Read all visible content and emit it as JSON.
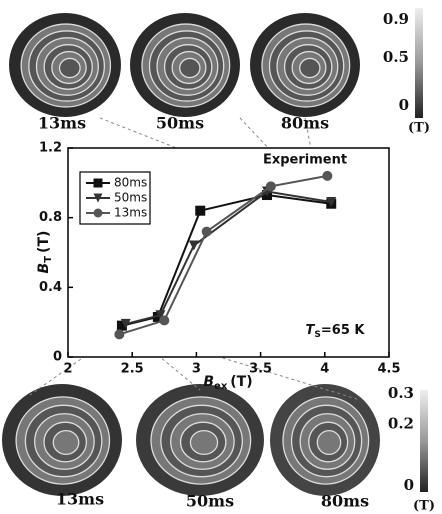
{
  "chart_data": {
    "type": "line",
    "xlabel": {
      "main": "B",
      "sub": "ex",
      "unit": "(T)"
    },
    "ylabel": {
      "main": "B",
      "sub": "T",
      "unit": "(T)"
    },
    "annotations": {
      "experiment": "Experiment",
      "temperature": {
        "main": "T",
        "sub": "S",
        "rest": "=65 K"
      }
    },
    "xlim": [
      2,
      4.5
    ],
    "xticks": [
      2,
      2.5,
      3,
      3.5,
      4,
      4.5
    ],
    "ylim": [
      0,
      1.2
    ],
    "yticks": [
      0,
      0.4,
      0.8,
      1.2
    ],
    "legend": "top-left",
    "series": [
      {
        "name": "80ms",
        "color": "#111111",
        "marker": "square",
        "x": [
          2.42,
          2.7,
          3.03,
          3.55,
          4.05
        ],
        "values": [
          0.18,
          0.23,
          0.84,
          0.93,
          0.88
        ]
      },
      {
        "name": "50ms",
        "color": "#333333",
        "marker": "triangle",
        "x": [
          2.45,
          2.72,
          2.98,
          3.55,
          4.05
        ],
        "values": [
          0.19,
          0.24,
          0.64,
          0.95,
          0.89
        ]
      },
      {
        "name": "13ms",
        "color": "#555555",
        "marker": "circle",
        "x": [
          2.4,
          2.75,
          3.08,
          3.58,
          4.02
        ],
        "values": [
          0.13,
          0.21,
          0.72,
          0.98,
          1.04
        ]
      }
    ]
  },
  "images": {
    "top": [
      "13ms",
      "50ms",
      "80ms"
    ],
    "bottom": [
      "13ms",
      "50ms",
      "80ms"
    ]
  },
  "colorbars": [
    {
      "lim": [
        0,
        0.9
      ],
      "ticks": [
        0,
        0.5,
        0.9
      ],
      "unit": "(T)"
    },
    {
      "lim": [
        0,
        0.3
      ],
      "ticks": [
        0,
        0.2,
        0.3
      ],
      "unit": "(T)"
    }
  ]
}
